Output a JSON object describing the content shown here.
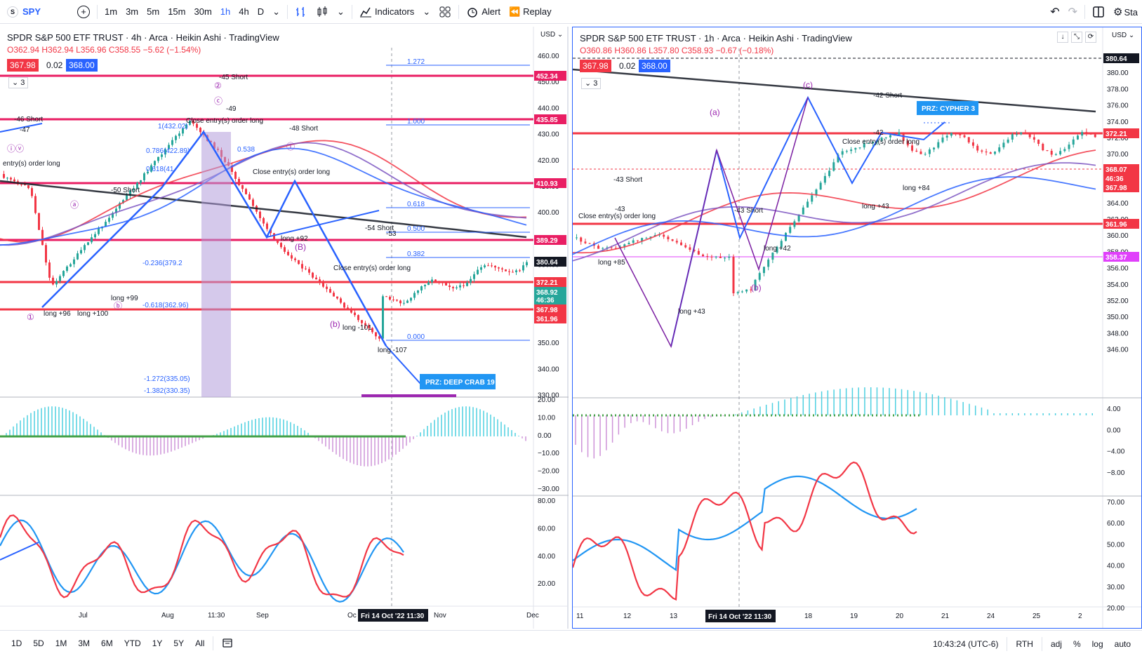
{
  "toolbar": {
    "symbol": "SPY",
    "symbol_badge": "S",
    "add_symbol": "+",
    "intervals": [
      "1m",
      "3m",
      "5m",
      "15m",
      "30m",
      "1h",
      "4h",
      "D"
    ],
    "active_interval": "1h",
    "indicators_label": "Indicators",
    "alert_label": "Alert",
    "replay_label": "Replay",
    "undo_icon": "undo-icon",
    "redo_icon": "redo-icon",
    "layout_icon": "layout-icon",
    "settings_label": "Sta"
  },
  "left_chart": {
    "title": "SPDR S&P 500 ETF TRUST · 4h · Arca · Heikin Ashi · TradingView",
    "ohlc": {
      "o": "O362.94",
      "h": "H362.94",
      "l": "L356.96",
      "c": "C358.55",
      "chg": "−5.62 (−1.54%)"
    },
    "sell_price": "367.98",
    "spread": "0.02",
    "buy_price": "368.00",
    "study_count": "3",
    "currency": "USD",
    "price_ticks": [
      "460.00",
      "450.00",
      "440.00",
      "430.00",
      "420.00",
      "410.00",
      "400.00",
      "390.00",
      "380.00",
      "370.00",
      "360.00",
      "350.00",
      "340.00",
      "330.00"
    ],
    "price_tags": [
      {
        "value": "452.34",
        "color": "#e91e63"
      },
      {
        "value": "435.85",
        "color": "#e91e63"
      },
      {
        "value": "410.93",
        "color": "#e91e63"
      },
      {
        "value": "389.29",
        "color": "#e91e63"
      },
      {
        "value": "380.64",
        "color": "#131722"
      },
      {
        "value": "372.21",
        "color": "#f23645"
      },
      {
        "value": "368.92",
        "color": "#26a69a"
      },
      {
        "value": "46:36",
        "color": "#26a69a"
      },
      {
        "value": "367.98",
        "color": "#f23645"
      },
      {
        "value": "361.96",
        "color": "#f23645"
      }
    ],
    "fib_levels": [
      "1.272",
      "1.000",
      "0.618",
      "0.500",
      "0.382",
      "0.000"
    ],
    "fib_notes": [
      "0.786(422.89)",
      "0.618(41",
      "-0.236(379.2",
      "-0.618(362.96)",
      "-1.272(335.05)",
      "-1.382(330.35)",
      "1(432.02)",
      "0.538"
    ],
    "prz_label": "PRZ: DEEP CRAB 19",
    "osc_ticks": [
      "20.00",
      "10.00",
      "0.00",
      "−10.00",
      "−20.00",
      "−30.00"
    ],
    "rsi_ticks": [
      "80.00",
      "60.00",
      "40.00",
      "20.00"
    ],
    "time_labels": [
      "Jul",
      "Aug",
      "11:30",
      "Sep",
      "Oc",
      "Nov",
      "Dec"
    ],
    "cursor_time": "Fri 14 Oct '22   11:30",
    "annotations": [
      "-46 Short",
      "-47",
      "entry(s) order long",
      "Close entry(s) order long",
      "-45 Short",
      "-49",
      "-48 Short",
      "Close entry(s) order long",
      "-50 Short",
      "-54 Short",
      "-53",
      "Close entry(s) order long",
      "long +96",
      "long +100",
      "long +99",
      "long +92",
      "long -101",
      "long -107"
    ]
  },
  "right_chart": {
    "title": "SPDR S&P 500 ETF TRUST · 1h · Arca · Heikin Ashi · TradingView",
    "ohlc": {
      "o": "O360.86",
      "h": "H360.86",
      "l": "L357.80",
      "c": "C358.93",
      "chg": "−0.67 (−0.18%)"
    },
    "sell_price": "367.98",
    "spread": "0.02",
    "buy_price": "368.00",
    "study_count": "3",
    "currency": "USD",
    "price_ticks": [
      "382.00",
      "380.00",
      "378.00",
      "376.00",
      "374.00",
      "372.00",
      "370.00",
      "368.00",
      "366.00",
      "364.00",
      "362.00",
      "360.00",
      "358.00",
      "356.00",
      "354.00",
      "352.00",
      "350.00",
      "348.00",
      "346.00"
    ],
    "price_tags": [
      {
        "value": "380.64",
        "color": "#131722"
      },
      {
        "value": "372.21",
        "color": "#f23645"
      },
      {
        "value": "368.07",
        "color": "#f23645"
      },
      {
        "value": "46:36",
        "color": "#f23645"
      },
      {
        "value": "367.98",
        "color": "#f23645"
      },
      {
        "value": "361.96",
        "color": "#f23645"
      },
      {
        "value": "358.37",
        "color": "#e040fb"
      }
    ],
    "prz_label": "PRZ: CYPHER 3",
    "osc_ticks": [
      "4.00",
      "0.00",
      "−4.00",
      "−8.00"
    ],
    "rsi_ticks": [
      "70.00",
      "60.00",
      "50.00",
      "40.00",
      "30.00",
      "20.00"
    ],
    "time_labels": [
      "11",
      "12",
      "13",
      "18",
      "19",
      "20",
      "21",
      "24",
      "25",
      "2"
    ],
    "cursor_time": "Fri 14 Oct '22   11:30",
    "annotations": [
      "(a)",
      "(b)",
      "(c)",
      "-43 Short",
      "-43",
      "Close entry(s) order long",
      "-43 Short",
      "-42 Short",
      "-42",
      "Close entry(s) order long",
      "long +85",
      "long +43",
      "long +42",
      "long +43",
      "long +84"
    ]
  },
  "bottombar": {
    "ranges": [
      "1D",
      "5D",
      "1M",
      "3M",
      "6M",
      "YTD",
      "1Y",
      "5Y",
      "All"
    ],
    "clock": "10:43:24 (UTC-6)",
    "session": "RTH",
    "adj": "adj",
    "pct": "%",
    "log": "log",
    "auto": "auto"
  },
  "colors": {
    "up": "#26a69a",
    "down": "#f23645",
    "accent": "#2962ff",
    "purple": "#9c27b0"
  }
}
